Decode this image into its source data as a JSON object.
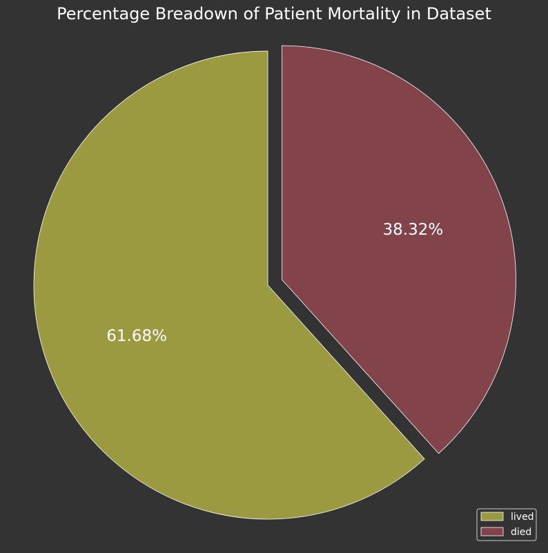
{
  "chart_data": {
    "type": "pie",
    "title": "Percentage Breadown of Patient Mortality in Dataset",
    "categories": [
      "lived",
      "died"
    ],
    "values": [
      61.68,
      38.32
    ],
    "value_labels": [
      "61.68%",
      "38.32%"
    ],
    "colors": [
      "#9c9a41",
      "#83434a"
    ],
    "exploded": [
      false,
      true
    ],
    "start": "top, counter-clockwise",
    "legend_position": "lower-right"
  },
  "background_color": "#333333",
  "edge_color": "#ffffff"
}
